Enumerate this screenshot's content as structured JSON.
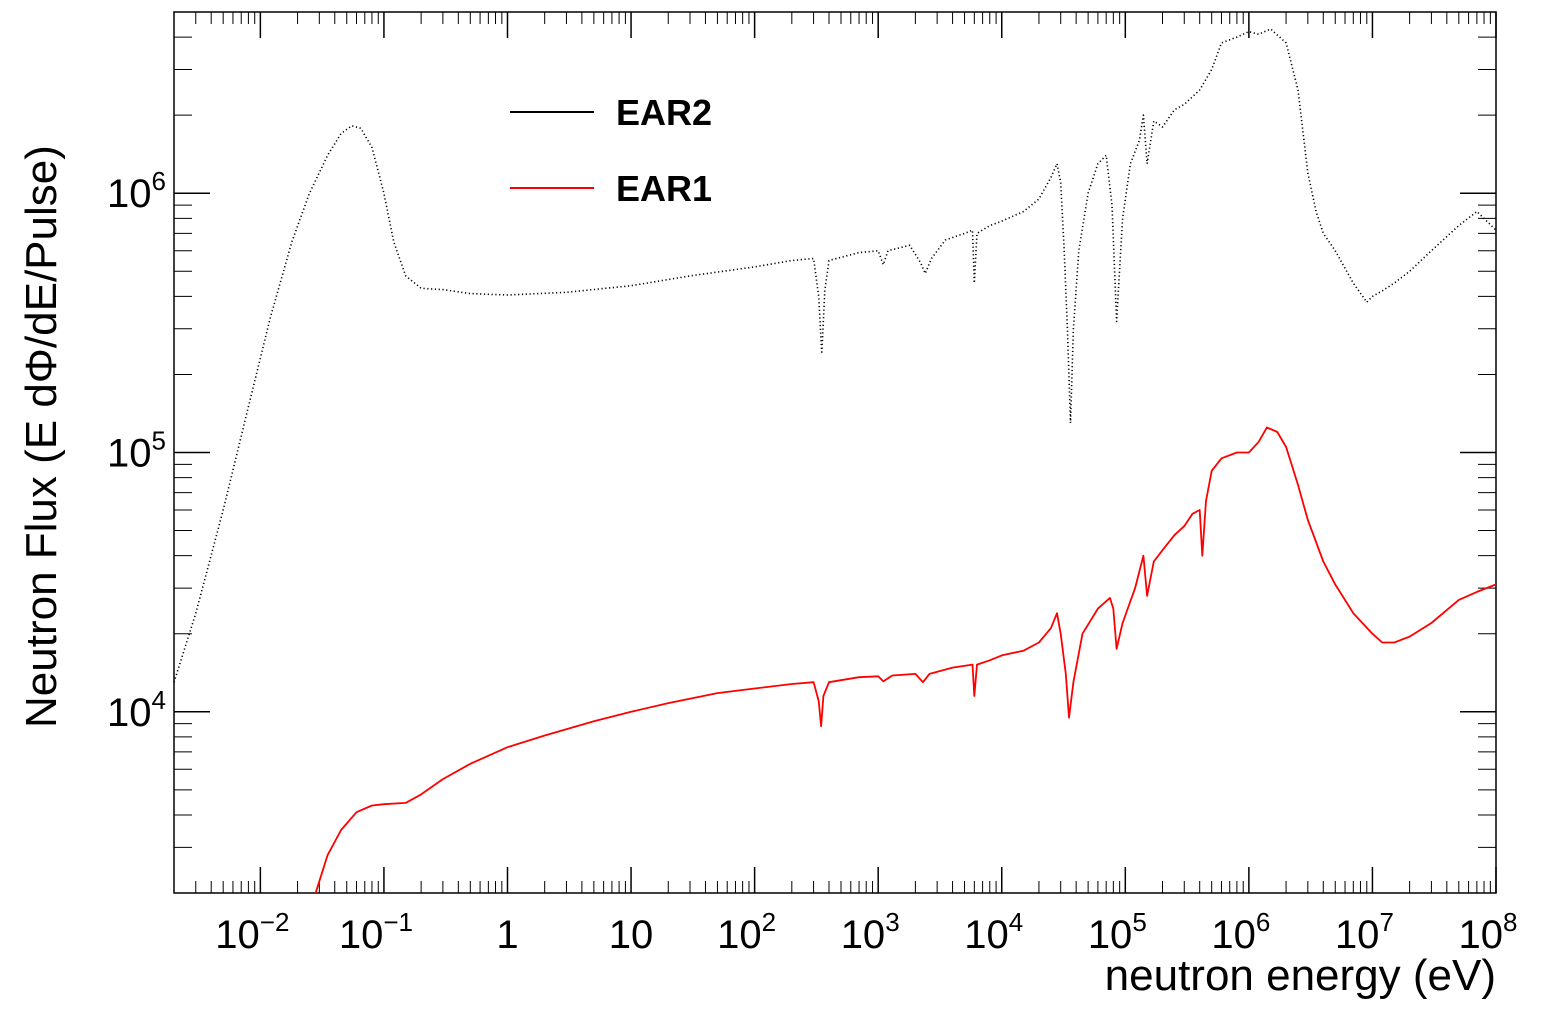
{
  "chart_data": {
    "type": "line",
    "xlabel": "neutron energy (eV)",
    "ylabel": "Neutron Flux (E dΦ/dE/Pulse)",
    "xscale": "log",
    "yscale": "log",
    "xlim": [
      0.002,
      100000000
    ],
    "ylim": [
      2000,
      5000000
    ],
    "grid": false,
    "legend_position": "top-left",
    "x_ticks": [
      {
        "value": 0.01,
        "base": "10",
        "exp": "−2"
      },
      {
        "value": 0.1,
        "base": "10",
        "exp": "−1"
      },
      {
        "value": 1,
        "base": "1",
        "exp": ""
      },
      {
        "value": 10,
        "base": "10",
        "exp": ""
      },
      {
        "value": 100,
        "base": "10",
        "exp": "2"
      },
      {
        "value": 1000,
        "base": "10",
        "exp": "3"
      },
      {
        "value": 10000,
        "base": "10",
        "exp": "4"
      },
      {
        "value": 100000,
        "base": "10",
        "exp": "5"
      },
      {
        "value": 1000000,
        "base": "10",
        "exp": "6"
      },
      {
        "value": 10000000,
        "base": "10",
        "exp": "7"
      },
      {
        "value": 100000000,
        "base": "10",
        "exp": "8"
      }
    ],
    "y_ticks": [
      {
        "value": 10000,
        "base": "10",
        "exp": "4"
      },
      {
        "value": 100000,
        "base": "10",
        "exp": "5"
      },
      {
        "value": 1000000,
        "base": "10",
        "exp": "6"
      }
    ],
    "series": [
      {
        "name": "EAR2",
        "color": "#000000",
        "style": "dots",
        "points": [
          [
            0.002,
            13000
          ],
          [
            0.003,
            24000
          ],
          [
            0.005,
            60000
          ],
          [
            0.008,
            150000
          ],
          [
            0.012,
            330000
          ],
          [
            0.018,
            650000
          ],
          [
            0.025,
            1000000
          ],
          [
            0.035,
            1400000
          ],
          [
            0.045,
            1700000
          ],
          [
            0.055,
            1820000
          ],
          [
            0.065,
            1780000
          ],
          [
            0.08,
            1500000
          ],
          [
            0.1,
            1000000
          ],
          [
            0.12,
            650000
          ],
          [
            0.15,
            480000
          ],
          [
            0.2,
            430000
          ],
          [
            0.3,
            425000
          ],
          [
            0.5,
            410000
          ],
          [
            1,
            405000
          ],
          [
            3,
            415000
          ],
          [
            10,
            440000
          ],
          [
            30,
            480000
          ],
          [
            100,
            520000
          ],
          [
            200,
            550000
          ],
          [
            300,
            560000
          ],
          [
            330,
            400000
          ],
          [
            350,
            240000
          ],
          [
            370,
            420000
          ],
          [
            400,
            550000
          ],
          [
            700,
            590000
          ],
          [
            1000,
            600000
          ],
          [
            1100,
            530000
          ],
          [
            1200,
            600000
          ],
          [
            1800,
            630000
          ],
          [
            2200,
            540000
          ],
          [
            2400,
            490000
          ],
          [
            2700,
            560000
          ],
          [
            3500,
            660000
          ],
          [
            5000,
            700000
          ],
          [
            5800,
            720000
          ],
          [
            6000,
            450000
          ],
          [
            6300,
            700000
          ],
          [
            8000,
            750000
          ],
          [
            10000,
            780000
          ],
          [
            15000,
            850000
          ],
          [
            20000,
            950000
          ],
          [
            25000,
            1150000
          ],
          [
            28000,
            1300000
          ],
          [
            30000,
            1100000
          ],
          [
            32000,
            600000
          ],
          [
            34000,
            300000
          ],
          [
            36000,
            130000
          ],
          [
            38000,
            300000
          ],
          [
            42000,
            600000
          ],
          [
            50000,
            1000000
          ],
          [
            60000,
            1300000
          ],
          [
            70000,
            1400000
          ],
          [
            78000,
            900000
          ],
          [
            85000,
            320000
          ],
          [
            95000,
            800000
          ],
          [
            110000,
            1300000
          ],
          [
            130000,
            1600000
          ],
          [
            140000,
            2000000
          ],
          [
            150000,
            1300000
          ],
          [
            170000,
            1900000
          ],
          [
            200000,
            1800000
          ],
          [
            250000,
            2100000
          ],
          [
            300000,
            2200000
          ],
          [
            400000,
            2500000
          ],
          [
            500000,
            3000000
          ],
          [
            600000,
            3800000
          ],
          [
            800000,
            4000000
          ],
          [
            1000000,
            4200000
          ],
          [
            1200000,
            4100000
          ],
          [
            1500000,
            4300000
          ],
          [
            2000000,
            3800000
          ],
          [
            2500000,
            2500000
          ],
          [
            3000000,
            1200000
          ],
          [
            3500000,
            850000
          ],
          [
            4000000,
            700000
          ],
          [
            5000000,
            600000
          ],
          [
            7000000,
            450000
          ],
          [
            9000000,
            380000
          ],
          [
            10000000,
            400000
          ],
          [
            12000000,
            420000
          ],
          [
            15000000,
            450000
          ],
          [
            20000000,
            500000
          ],
          [
            30000000,
            600000
          ],
          [
            50000000,
            750000
          ],
          [
            70000000,
            850000
          ],
          [
            100000000,
            720000
          ]
        ]
      },
      {
        "name": "EAR1",
        "color": "#ff0000",
        "style": "line",
        "points": [
          [
            0.028,
            2000
          ],
          [
            0.035,
            2800
          ],
          [
            0.045,
            3500
          ],
          [
            0.06,
            4100
          ],
          [
            0.08,
            4350
          ],
          [
            0.1,
            4400
          ],
          [
            0.15,
            4450
          ],
          [
            0.2,
            4800
          ],
          [
            0.3,
            5500
          ],
          [
            0.5,
            6300
          ],
          [
            1,
            7300
          ],
          [
            2,
            8100
          ],
          [
            5,
            9200
          ],
          [
            10,
            10000
          ],
          [
            20,
            10800
          ],
          [
            50,
            11800
          ],
          [
            100,
            12300
          ],
          [
            200,
            12800
          ],
          [
            300,
            13000
          ],
          [
            330,
            11000
          ],
          [
            345,
            8800
          ],
          [
            360,
            11500
          ],
          [
            400,
            13000
          ],
          [
            700,
            13600
          ],
          [
            1000,
            13700
          ],
          [
            1100,
            13100
          ],
          [
            1300,
            13800
          ],
          [
            2000,
            14000
          ],
          [
            2300,
            13000
          ],
          [
            2600,
            14000
          ],
          [
            4000,
            14800
          ],
          [
            5800,
            15200
          ],
          [
            6000,
            11500
          ],
          [
            6300,
            15200
          ],
          [
            8000,
            15800
          ],
          [
            10000,
            16500
          ],
          [
            15000,
            17200
          ],
          [
            20000,
            18500
          ],
          [
            25000,
            21000
          ],
          [
            28000,
            24000
          ],
          [
            30000,
            20000
          ],
          [
            33000,
            14000
          ],
          [
            35000,
            9500
          ],
          [
            38000,
            13000
          ],
          [
            45000,
            20000
          ],
          [
            60000,
            25000
          ],
          [
            75000,
            27500
          ],
          [
            80000,
            25000
          ],
          [
            85000,
            17500
          ],
          [
            95000,
            22000
          ],
          [
            120000,
            30000
          ],
          [
            140000,
            40000
          ],
          [
            150000,
            28000
          ],
          [
            170000,
            38000
          ],
          [
            200000,
            42000
          ],
          [
            250000,
            48000
          ],
          [
            300000,
            52000
          ],
          [
            350000,
            58000
          ],
          [
            400000,
            60000
          ],
          [
            420000,
            40000
          ],
          [
            450000,
            65000
          ],
          [
            500000,
            85000
          ],
          [
            600000,
            95000
          ],
          [
            800000,
            100000
          ],
          [
            1000000,
            100000
          ],
          [
            1200000,
            110000
          ],
          [
            1400000,
            125000
          ],
          [
            1700000,
            120000
          ],
          [
            2000000,
            105000
          ],
          [
            2500000,
            75000
          ],
          [
            3000000,
            55000
          ],
          [
            4000000,
            38000
          ],
          [
            5000000,
            31000
          ],
          [
            7000000,
            24000
          ],
          [
            10000000,
            20000
          ],
          [
            12000000,
            18500
          ],
          [
            15000000,
            18500
          ],
          [
            20000000,
            19500
          ],
          [
            30000000,
            22000
          ],
          [
            50000000,
            27000
          ],
          [
            70000000,
            29000
          ],
          [
            100000000,
            31000
          ]
        ]
      }
    ]
  }
}
